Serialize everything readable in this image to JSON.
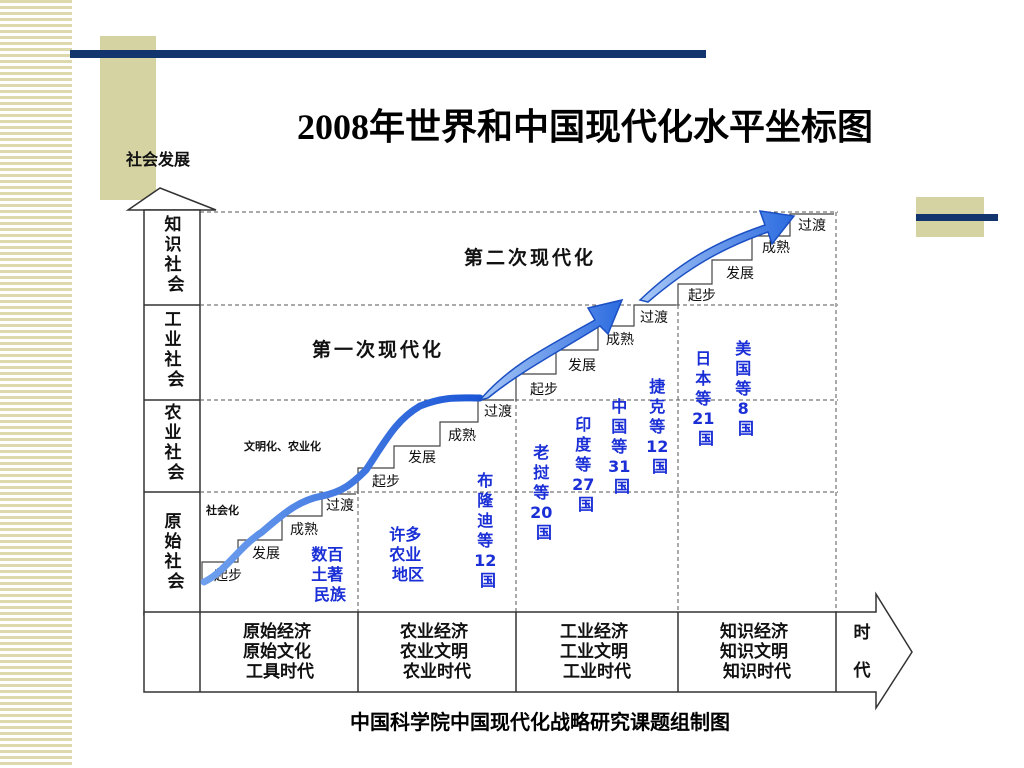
{
  "title": "2008年世界和中国现代化水平坐标图",
  "y_axis_label": "社会发展",
  "x_axis_label": [
    "时",
    "代"
  ],
  "caption": "中国科学院中国现代化战略研究课题组制图",
  "stages": [
    {
      "label": [
        "知",
        "识",
        "社",
        "会"
      ]
    },
    {
      "label": [
        "工",
        "业",
        "社",
        "会"
      ]
    },
    {
      "label": [
        "农",
        "业",
        "社",
        "会"
      ]
    },
    {
      "label": [
        "原",
        "始",
        "社",
        "会"
      ]
    }
  ],
  "eras": [
    {
      "lines": [
        "原始经济",
        "原始文化",
        "工具时代"
      ]
    },
    {
      "lines": [
        "农业经济",
        "农业文明",
        "农业时代"
      ]
    },
    {
      "lines": [
        "工业经济",
        "工业文明",
        "工业时代"
      ]
    },
    {
      "lines": [
        "知识经济",
        "知识文明",
        "知识时代"
      ]
    }
  ],
  "phase_steps": [
    "起步",
    "发展",
    "成熟",
    "过渡"
  ],
  "modernization": {
    "first": "第一次现代化",
    "second": "第二次现代化",
    "process_note": "文明化、农业化",
    "primitive_note": "社会化"
  },
  "country_groups": [
    {
      "lines": [
        "数百",
        "土著",
        "民族"
      ]
    },
    {
      "lines": [
        "许多",
        "农业",
        "地区"
      ]
    },
    {
      "lines": [
        "布",
        "隆",
        "迪",
        "等",
        "12",
        "国"
      ]
    },
    {
      "lines": [
        "老",
        "挝",
        "等",
        "20",
        "国"
      ]
    },
    {
      "lines": [
        "印",
        "度",
        "等",
        "27",
        "国"
      ]
    },
    {
      "lines": [
        "中",
        "国",
        "等",
        "31",
        "国"
      ]
    },
    {
      "lines": [
        "捷",
        "克",
        "等",
        "12",
        "国"
      ]
    },
    {
      "lines": [
        "日",
        "本",
        "等",
        "21",
        "国"
      ]
    },
    {
      "lines": [
        "美",
        "国",
        "等",
        "8",
        "国"
      ]
    }
  ],
  "colors": {
    "navy": "#13356d",
    "tan": "#d6d3a2",
    "arrow_blue": "#2b6be0",
    "label_blue": "#1a2fd6"
  }
}
